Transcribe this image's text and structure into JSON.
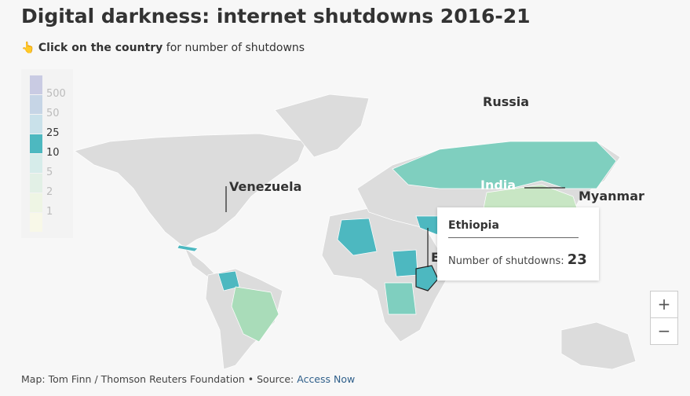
{
  "title": "Digital darkness: internet shutdowns 2016-21",
  "subtitle": {
    "icon": "pointing-hand-icon",
    "bold": "Click on the country",
    "rest": " for number of shutdowns"
  },
  "legend": [
    {
      "label": "500",
      "color": "#c9cbe3"
    },
    {
      "label": "50",
      "color": "#c6d5e6"
    },
    {
      "label": "25",
      "color": "#c9e1ea"
    },
    {
      "label": "10",
      "color": "#4db8c0"
    },
    {
      "label": "5",
      "color": "#d6ecea"
    },
    {
      "label": "2",
      "color": "#e2f0e6"
    },
    {
      "label": "1",
      "color": "#eef5e4"
    },
    {
      "label": "",
      "color": "#f8f8e8"
    }
  ],
  "labels": {
    "russia": "Russia",
    "venezuela": "Venezuela",
    "india": "India",
    "myanmar": "Myanmar",
    "ethiopia_short": "E"
  },
  "tooltip": {
    "country": "Ethiopia",
    "metric": "Number of shutdowns: ",
    "value": "23"
  },
  "zoom": {
    "in": "+",
    "out": "−"
  },
  "footer": {
    "text": "Map: Tom Finn / Thomson Reuters Foundation • Source: ",
    "link": "Access Now"
  }
}
